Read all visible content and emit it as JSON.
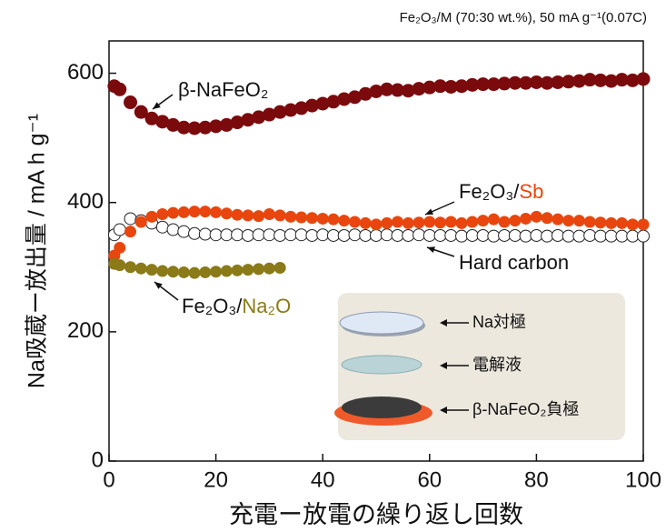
{
  "chart_data": {
    "type": "scatter",
    "title": "Fe₂O₃/M (70:30 wt.%), 50 mA g⁻¹(0.07C)",
    "x_label": "充電ー放電の繰り返し回数",
    "y_label": "Na吸蔵ー放出量 / mA h g⁻¹",
    "xlim": [
      0,
      100
    ],
    "ylim": [
      0,
      650
    ],
    "xticks": [
      0,
      20,
      40,
      60,
      80,
      100
    ],
    "yticks": [
      0,
      200,
      400,
      600
    ],
    "series": [
      {
        "name": "β-NaFeO₂",
        "color": "#7b0a0c",
        "fill": true,
        "x": [
          1,
          2,
          4,
          6,
          8,
          10,
          12,
          14,
          16,
          18,
          20,
          22,
          24,
          26,
          28,
          30,
          32,
          34,
          36,
          38,
          40,
          42,
          44,
          46,
          48,
          50,
          52,
          54,
          56,
          58,
          60,
          62,
          64,
          66,
          68,
          70,
          72,
          74,
          76,
          78,
          80,
          82,
          84,
          86,
          88,
          90,
          92,
          94,
          96,
          98,
          100
        ],
        "values": [
          580,
          575,
          555,
          540,
          530,
          525,
          520,
          516,
          515,
          516,
          518,
          520,
          524,
          528,
          532,
          536,
          540,
          543,
          546,
          550,
          553,
          556,
          560,
          563,
          568,
          572,
          575,
          574,
          573,
          576,
          578,
          580,
          579,
          580,
          582,
          583,
          583,
          584,
          585,
          585,
          586,
          585,
          586,
          587,
          588,
          590,
          589,
          588,
          590,
          589,
          591
        ]
      },
      {
        "name": "Hard carbon",
        "color": "#222222",
        "fill": false,
        "x": [
          1,
          2,
          4,
          6,
          8,
          10,
          12,
          14,
          16,
          18,
          20,
          22,
          24,
          26,
          28,
          30,
          32,
          34,
          36,
          38,
          40,
          42,
          44,
          46,
          48,
          50,
          52,
          54,
          56,
          58,
          60,
          62,
          64,
          66,
          68,
          70,
          72,
          74,
          76,
          78,
          80,
          82,
          84,
          86,
          88,
          90,
          92,
          94,
          96,
          98,
          100
        ],
        "values": [
          350,
          358,
          375,
          372,
          368,
          362,
          358,
          355,
          352,
          351,
          350,
          350,
          350,
          349,
          350,
          350,
          349,
          350,
          350,
          349,
          350,
          349,
          349,
          350,
          349,
          349,
          350,
          349,
          349,
          350,
          349,
          349,
          349,
          348,
          349,
          349,
          348,
          349,
          349,
          348,
          349,
          348,
          349,
          348,
          348,
          349,
          348,
          348,
          348,
          348,
          348
        ]
      },
      {
        "name": "Fe₂O₃/Sb",
        "color": "#e8460e",
        "fill": true,
        "x": [
          1,
          2,
          4,
          6,
          8,
          10,
          12,
          14,
          16,
          18,
          20,
          22,
          24,
          26,
          28,
          30,
          32,
          34,
          36,
          38,
          40,
          42,
          44,
          46,
          48,
          50,
          52,
          54,
          56,
          58,
          60,
          62,
          64,
          66,
          68,
          70,
          72,
          74,
          76,
          78,
          80,
          82,
          84,
          86,
          88,
          90,
          92,
          94,
          96,
          98,
          100
        ],
        "values": [
          318,
          330,
          355,
          370,
          378,
          382,
          384,
          385,
          386,
          386,
          385,
          383,
          381,
          380,
          379,
          382,
          380,
          378,
          377,
          376,
          375,
          374,
          372,
          370,
          368,
          366,
          368,
          370,
          368,
          369,
          370,
          369,
          370,
          368,
          370,
          372,
          374,
          370,
          372,
          375,
          378,
          376,
          374,
          372,
          372,
          370,
          369,
          368,
          368,
          366,
          366
        ]
      },
      {
        "name": "Fe₂O₃/Na₂O",
        "color": "#8a7a18",
        "fill": true,
        "x": [
          1,
          2,
          4,
          6,
          8,
          10,
          12,
          14,
          16,
          18,
          20,
          22,
          24,
          26,
          28,
          30,
          32
        ],
        "values": [
          305,
          303,
          300,
          298,
          296,
          294,
          293,
          292,
          291,
          292,
          293,
          294,
          295,
          296,
          297,
          298,
          299
        ]
      }
    ],
    "inset_labels": [
      "Na対極",
      "電解液",
      "β-NaFeO₂負極"
    ]
  }
}
